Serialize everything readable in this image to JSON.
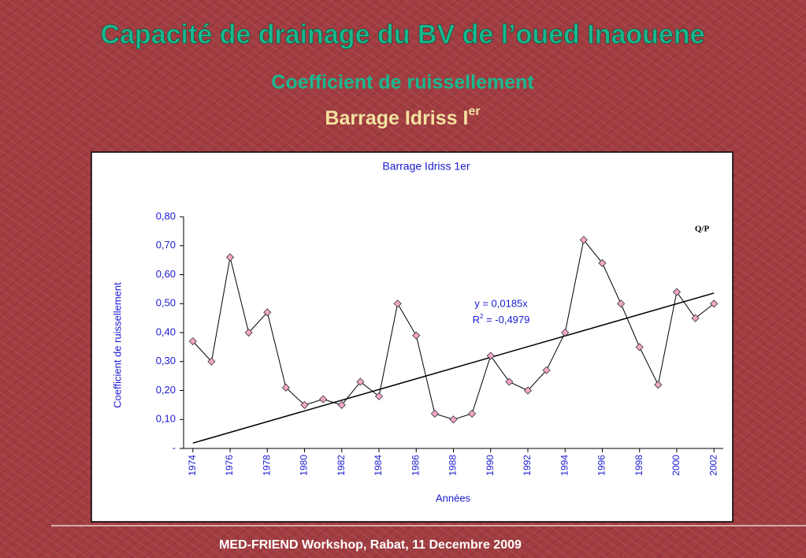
{
  "slide": {
    "title": "Capacité de drainage du BV de l’oued Inaouene",
    "subtitle": "Coefficient de ruissellement",
    "heading": {
      "text": "Barrage Idriss I",
      "superscript": "er"
    },
    "footer": "MED-FRIEND Workshop, Rabat, 11 Decembre 2009"
  },
  "chart_data": {
    "type": "line",
    "title": "Barrage Idriss 1er",
    "x_label": "Années",
    "y_label": "Coefficient de ruissellement",
    "x": [
      1974,
      1975,
      1976,
      1977,
      1978,
      1979,
      1980,
      1981,
      1982,
      1983,
      1984,
      1985,
      1986,
      1987,
      1988,
      1989,
      1990,
      1991,
      1992,
      1993,
      1994,
      1995,
      1996,
      1997,
      1998,
      1999,
      2000,
      2001,
      2002
    ],
    "series": [
      {
        "name": "Q/P",
        "color": "#f4a6c8",
        "values": [
          0.37,
          0.3,
          0.66,
          0.4,
          0.47,
          0.21,
          0.15,
          0.17,
          0.15,
          0.23,
          0.18,
          0.5,
          0.39,
          0.12,
          0.1,
          0.12,
          0.32,
          0.23,
          0.2,
          0.27,
          0.4,
          0.72,
          0.64,
          0.5,
          0.35,
          0.22,
          0.54,
          0.45,
          0.5
        ]
      }
    ],
    "trendline": {
      "x": [
        1974,
        2002
      ],
      "values": [
        0.0185,
        0.5365
      ],
      "equation": "y = 0,0185x",
      "r_squared": {
        "symbol": "R",
        "exponent": "2",
        "text": " = -0,4979"
      }
    },
    "xlim": [
      1973.5,
      2002.5
    ],
    "xticks": [
      1974,
      1976,
      1978,
      1980,
      1982,
      1984,
      1986,
      1988,
      1990,
      1992,
      1994,
      1996,
      1998,
      2000,
      2002
    ],
    "ylim": [
      0,
      0.8
    ],
    "yticks": [
      {
        "value": 0,
        "label": "-"
      },
      {
        "value": 0.1,
        "label": "0,10"
      },
      {
        "value": 0.2,
        "label": "0,20"
      },
      {
        "value": 0.3,
        "label": "0,30"
      },
      {
        "value": 0.4,
        "label": "0,40"
      },
      {
        "value": 0.5,
        "label": "0,50"
      },
      {
        "value": 0.6,
        "label": "0,60"
      },
      {
        "value": 0.7,
        "label": "0,70"
      },
      {
        "value": 0.8,
        "label": "0,80"
      }
    ]
  }
}
